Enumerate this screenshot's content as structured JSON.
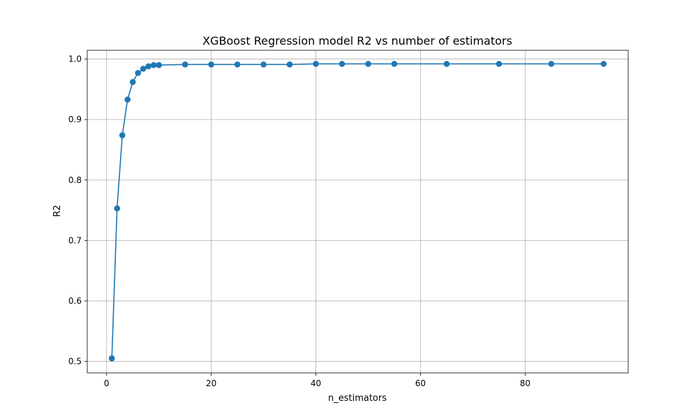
{
  "chart_data": {
    "type": "line",
    "title": "XGBoost Regression model R2 vs number of estimators",
    "xlabel": "n_estimators",
    "ylabel": "R2",
    "xlim": [
      -3.7,
      99.7
    ],
    "ylim": [
      0.481,
      1.0145
    ],
    "xticks": [
      0,
      20,
      40,
      60,
      80
    ],
    "yticks": [
      0.5,
      0.6,
      0.7,
      0.8,
      0.9,
      1.0
    ],
    "grid": true,
    "series_color": "#1f77b4",
    "series": [
      {
        "x": [
          1,
          2,
          3,
          4,
          5,
          6,
          7,
          8,
          9,
          10,
          15,
          20,
          25,
          30,
          35,
          40,
          45,
          50,
          55,
          65,
          75,
          85,
          95
        ],
        "y": [
          0.505,
          0.753,
          0.874,
          0.933,
          0.962,
          0.977,
          0.984,
          0.988,
          0.99,
          0.99,
          0.991,
          0.991,
          0.991,
          0.991,
          0.991,
          0.992,
          0.992,
          0.992,
          0.992,
          0.992,
          0.992,
          0.992,
          0.992
        ]
      }
    ]
  }
}
